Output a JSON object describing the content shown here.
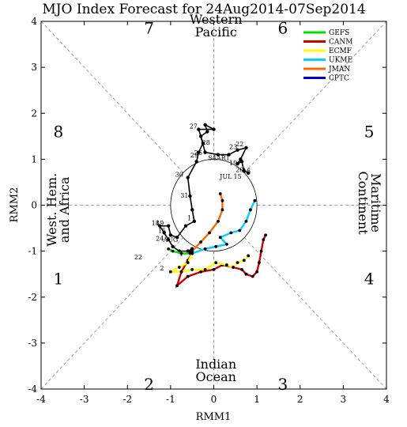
{
  "chart_data": {
    "type": "line",
    "title": "MJO Index Forecast for 24Aug2014-07Sep2014",
    "xlabel": "RMM1",
    "ylabel": "RMM2",
    "xlim": [
      -4,
      4
    ],
    "ylim": [
      -4,
      4
    ],
    "xticks": [
      "-4",
      "-3",
      "-2",
      "-1",
      "0",
      "1",
      "2",
      "3",
      "4"
    ],
    "yticks": [
      "-4",
      "-3",
      "-2",
      "-1",
      "0",
      "1",
      "2",
      "3",
      "4"
    ],
    "unit_circle_radius": 1,
    "phases": [
      {
        "label": "1",
        "x": -3.6,
        "y": -1.6
      },
      {
        "label": "2",
        "x": -1.5,
        "y": -3.9
      },
      {
        "label": "3",
        "x": 1.6,
        "y": -3.9
      },
      {
        "label": "4",
        "x": 3.6,
        "y": -1.6
      },
      {
        "label": "5",
        "x": 3.6,
        "y": 1.6
      },
      {
        "label": "6",
        "x": 1.6,
        "y": 3.85
      },
      {
        "label": "7",
        "x": -1.5,
        "y": 3.85
      },
      {
        "label": "8",
        "x": -3.6,
        "y": 1.6
      }
    ],
    "regions": [
      {
        "lines": [
          "Western",
          "Pacific"
        ],
        "x": 0.05,
        "y": 3.9,
        "rotate": 0
      },
      {
        "lines": [
          "Indian",
          "Ocean"
        ],
        "x": 0.05,
        "y": -3.6,
        "rotate": 0
      },
      {
        "lines": [
          "West. Hem.",
          "and Africa"
        ],
        "x": -3.6,
        "y": -0.1,
        "rotate": -90
      },
      {
        "lines": [
          "Maritime",
          "Continent"
        ],
        "x": 3.6,
        "y": 0.05,
        "rotate": 90
      }
    ],
    "legend": {
      "placement": "top-right",
      "entries": [
        {
          "name": "GEFS",
          "color": "#00dd00"
        },
        {
          "name": "CANM",
          "color": "#cc0000"
        },
        {
          "name": "ECMF",
          "color": "#ffff00"
        },
        {
          "name": "UKME",
          "color": "#00d0ff"
        },
        {
          "name": "JMAN",
          "color": "#ff6600"
        },
        {
          "name": "CPTC",
          "color": "#0000cc"
        }
      ]
    },
    "observed": {
      "color": "#000000",
      "points": [
        [
          0.8,
          0.7
        ],
        [
          0.7,
          0.75
        ],
        [
          0.65,
          0.95
        ],
        [
          0.55,
          0.9
        ],
        [
          0.62,
          1.0
        ],
        [
          0.75,
          1.25
        ],
        [
          0.55,
          1.2
        ],
        [
          0.35,
          1.1
        ],
        [
          0.1,
          1.1
        ],
        [
          -0.2,
          1.15
        ],
        [
          -0.3,
          1.5
        ],
        [
          -0.15,
          1.6
        ],
        [
          -0.2,
          1.75
        ],
        [
          0.0,
          1.65
        ],
        [
          -0.35,
          1.65
        ],
        [
          -0.25,
          1.35
        ],
        [
          -0.35,
          1.15
        ],
        [
          -0.4,
          0.95
        ],
        [
          -0.6,
          0.6
        ],
        [
          -0.55,
          0.2
        ],
        [
          -0.5,
          -0.1
        ],
        [
          -0.45,
          -0.35
        ],
        [
          -0.65,
          -0.45
        ],
        [
          -0.85,
          -0.7
        ],
        [
          -1.0,
          -0.65
        ],
        [
          -1.05,
          -0.45
        ],
        [
          -1.25,
          -0.45
        ],
        [
          -1.15,
          -0.6
        ],
        [
          -1.05,
          -0.75
        ],
        [
          -0.95,
          -0.9
        ],
        [
          -0.8,
          -1.0
        ],
        [
          -0.6,
          -1.0
        ],
        [
          -0.5,
          -0.95
        ]
      ],
      "labels": [
        {
          "text": "27",
          "x": -0.47,
          "y": 1.67
        },
        {
          "text": "28",
          "x": -0.18,
          "y": 1.32
        },
        {
          "text": "26",
          "x": -0.36,
          "y": 1.09
        },
        {
          "text": "29",
          "x": -0.45,
          "y": 1.04
        },
        {
          "text": "30",
          "x": -0.8,
          "y": 0.62
        },
        {
          "text": "31",
          "x": -0.68,
          "y": 0.16
        },
        {
          "text": "1",
          "x": -0.57,
          "y": -0.33
        },
        {
          "text": "23",
          "x": 0.45,
          "y": 1.22
        },
        {
          "text": "22",
          "x": 0.6,
          "y": 1.28
        },
        {
          "text": "S4AR1",
          "x": 0.12,
          "y": 0.98
        },
        {
          "text": "19",
          "x": 0.45,
          "y": 0.87
        },
        {
          "text": "20",
          "x": 0.6,
          "y": 0.72
        },
        {
          "text": "16",
          "x": 0.76,
          "y": 0.7
        },
        {
          "text": "JUL",
          "x": 0.28,
          "y": 0.58
        },
        {
          "text": "15",
          "x": 0.55,
          "y": 0.58
        },
        {
          "text": "18",
          "x": -1.35,
          "y": -0.44
        },
        {
          "text": "19",
          "x": -1.25,
          "y": -0.44
        },
        {
          "text": "15",
          "x": -1.2,
          "y": -0.6
        },
        {
          "text": "24",
          "x": -1.25,
          "y": -0.77
        },
        {
          "text": "AUG",
          "x": -1.0,
          "y": -0.8
        },
        {
          "text": "22",
          "x": -1.75,
          "y": -1.18
        },
        {
          "text": "2",
          "x": -1.2,
          "y": -1.42
        },
        {
          "text": "1",
          "x": -0.75,
          "y": -1.1
        }
      ]
    },
    "series": [
      {
        "name": "CANM",
        "color": "#cc0000",
        "values": [
          [
            -0.5,
            -1.05
          ],
          [
            -0.6,
            -1.2
          ],
          [
            -0.75,
            -1.45
          ],
          [
            -0.85,
            -1.75
          ],
          [
            -0.6,
            -1.55
          ],
          [
            -0.3,
            -1.45
          ],
          [
            0.0,
            -1.4
          ],
          [
            0.2,
            -1.3
          ],
          [
            0.45,
            -1.35
          ],
          [
            0.65,
            -1.4
          ],
          [
            0.75,
            -1.5
          ],
          [
            0.9,
            -1.55
          ],
          [
            1.0,
            -1.45
          ],
          [
            1.05,
            -1.25
          ],
          [
            1.1,
            -1.0
          ],
          [
            1.15,
            -0.75
          ],
          [
            1.2,
            -0.65
          ]
        ]
      },
      {
        "name": "ECMF",
        "color": "#ffff00",
        "values": [
          [
            -0.5,
            -1.05
          ],
          [
            -0.6,
            -1.25
          ],
          [
            -0.8,
            -1.35
          ],
          [
            -1.0,
            -1.45
          ],
          [
            -0.75,
            -1.45
          ],
          [
            -0.5,
            -1.4
          ],
          [
            -0.2,
            -1.4
          ],
          [
            0.05,
            -1.25
          ],
          [
            0.3,
            -1.3
          ],
          [
            0.45,
            -1.35
          ],
          [
            0.55,
            -1.25
          ],
          [
            0.7,
            -1.2
          ],
          [
            0.8,
            -1.1
          ]
        ]
      },
      {
        "name": "GEFS",
        "color": "#00dd00",
        "values": [
          [
            -0.55,
            -1.05
          ],
          [
            -0.75,
            -1.05
          ],
          [
            -0.95,
            -1.0
          ],
          [
            -1.05,
            -0.95
          ]
        ]
      },
      {
        "name": "UKME",
        "color": "#00d0ff",
        "values": [
          [
            -0.5,
            -1.05
          ],
          [
            -0.2,
            -0.95
          ],
          [
            0.05,
            -0.9
          ],
          [
            0.3,
            -0.85
          ],
          [
            0.15,
            -0.7
          ],
          [
            0.4,
            -0.6
          ],
          [
            0.6,
            -0.55
          ],
          [
            0.75,
            -0.35
          ],
          [
            0.85,
            -0.1
          ],
          [
            0.95,
            0.1
          ]
        ]
      },
      {
        "name": "JMAN",
        "color": "#ff6600",
        "values": [
          [
            -0.5,
            -1.0
          ],
          [
            -0.3,
            -0.8
          ],
          [
            -0.1,
            -0.6
          ],
          [
            0.1,
            -0.35
          ],
          [
            0.2,
            -0.1
          ],
          [
            0.2,
            0.1
          ],
          [
            0.15,
            0.25
          ]
        ]
      },
      {
        "name": "CPTC",
        "color": "#0000cc",
        "values": [
          [
            -0.55,
            -1.0
          ],
          [
            -0.5,
            -0.95
          ]
        ]
      }
    ]
  }
}
